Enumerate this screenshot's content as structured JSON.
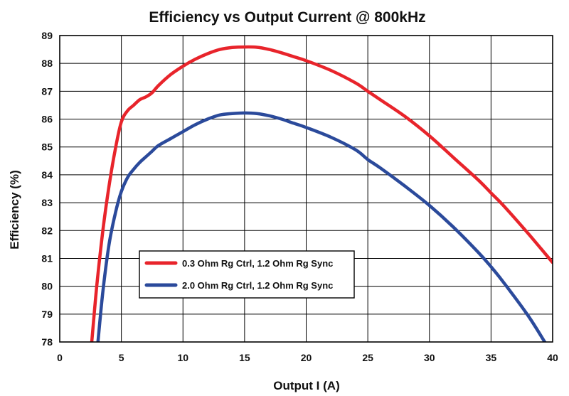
{
  "chart_data": {
    "type": "line",
    "title": "Efficiency vs Output Current @ 800kHz",
    "xlabel": "Output I (A)",
    "ylabel": "Efficiency (%)",
    "xlim": [
      0,
      40
    ],
    "ylim": [
      78,
      89
    ],
    "xticks": [
      "0",
      "5",
      "10",
      "15",
      "20",
      "25",
      "30",
      "35",
      "40"
    ],
    "yticks": [
      "78",
      "79",
      "80",
      "81",
      "82",
      "83",
      "84",
      "85",
      "86",
      "87",
      "88",
      "89"
    ],
    "grid": true,
    "legend_position": "lower-left",
    "series": [
      {
        "name": "0.3 Ohm Rg Ctrl, 1.2 Ohm Rg Sync",
        "color": "#e8242b",
        "x": [
          2.6,
          3.0,
          3.5,
          4.0,
          4.5,
          5.0,
          5.5,
          6.0,
          6.5,
          7.0,
          7.5,
          8.0,
          9.0,
          10.0,
          11.0,
          12.0,
          13.0,
          14.0,
          15.0,
          16.0,
          17.0,
          18.0,
          19.0,
          20.0,
          22.0,
          24.0,
          25.0,
          26.0,
          28.0,
          30.0,
          32.0,
          34.0,
          35.0,
          36.0,
          38.0,
          40.0
        ],
        "y": [
          78.0,
          80.0,
          82.0,
          83.6,
          84.9,
          85.9,
          86.3,
          86.5,
          86.7,
          86.8,
          86.95,
          87.2,
          87.6,
          87.9,
          88.15,
          88.35,
          88.5,
          88.57,
          88.59,
          88.58,
          88.5,
          88.38,
          88.24,
          88.1,
          87.75,
          87.3,
          87.0,
          86.7,
          86.1,
          85.4,
          84.6,
          83.8,
          83.35,
          82.9,
          81.9,
          80.85
        ]
      },
      {
        "name": "2.0 Ohm Rg Ctrl, 1.2 Ohm Rg Sync",
        "color": "#2b4a9b",
        "x": [
          3.1,
          3.5,
          4.0,
          4.5,
          5.0,
          5.5,
          6.0,
          6.5,
          7.0,
          7.5,
          8.0,
          9.0,
          10.0,
          11.0,
          12.0,
          13.0,
          14.0,
          15.0,
          16.0,
          17.0,
          18.0,
          19.0,
          20.0,
          22.0,
          24.0,
          25.0,
          26.0,
          28.0,
          30.0,
          32.0,
          34.0,
          35.0,
          36.0,
          38.0,
          39.5
        ],
        "y": [
          78.0,
          79.8,
          81.5,
          82.6,
          83.4,
          83.9,
          84.2,
          84.45,
          84.65,
          84.85,
          85.05,
          85.3,
          85.55,
          85.8,
          86.0,
          86.15,
          86.2,
          86.22,
          86.2,
          86.12,
          86.0,
          85.85,
          85.7,
          85.35,
          84.9,
          84.55,
          84.25,
          83.6,
          82.9,
          82.1,
          81.2,
          80.7,
          80.15,
          78.95,
          77.9
        ]
      }
    ]
  }
}
